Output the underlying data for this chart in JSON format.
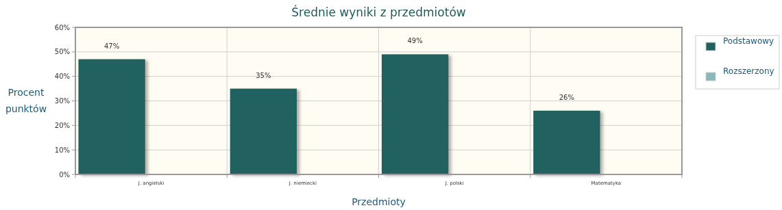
{
  "chart_data": {
    "type": "bar",
    "title": "Średnie wyniki z przedmiotów",
    "xlabel": "Przedmioty",
    "ylabel": "Procent punktów",
    "categories": [
      "J. angielski",
      "J. niemiecki",
      "J. polski",
      "Matematyka"
    ],
    "series": [
      {
        "name": "Podstawowy",
        "color": "#216160",
        "values": [
          47,
          35,
          49,
          26
        ],
        "value_labels": [
          "47%",
          "35%",
          "49%",
          "26%"
        ]
      },
      {
        "name": "Rozszerzony",
        "color": "#8ab8b8",
        "values": [
          null,
          null,
          null,
          null
        ]
      }
    ],
    "ylim": [
      0,
      60
    ],
    "yticks": [
      {
        "value": 0,
        "label": "0%"
      },
      {
        "value": 10,
        "label": "10%"
      },
      {
        "value": 20,
        "label": "20%"
      },
      {
        "value": 30,
        "label": "30%"
      },
      {
        "value": 40,
        "label": "40%"
      },
      {
        "value": 50,
        "label": "50%"
      },
      {
        "value": 60,
        "label": "60%"
      }
    ],
    "grid": true,
    "legend": "right"
  }
}
